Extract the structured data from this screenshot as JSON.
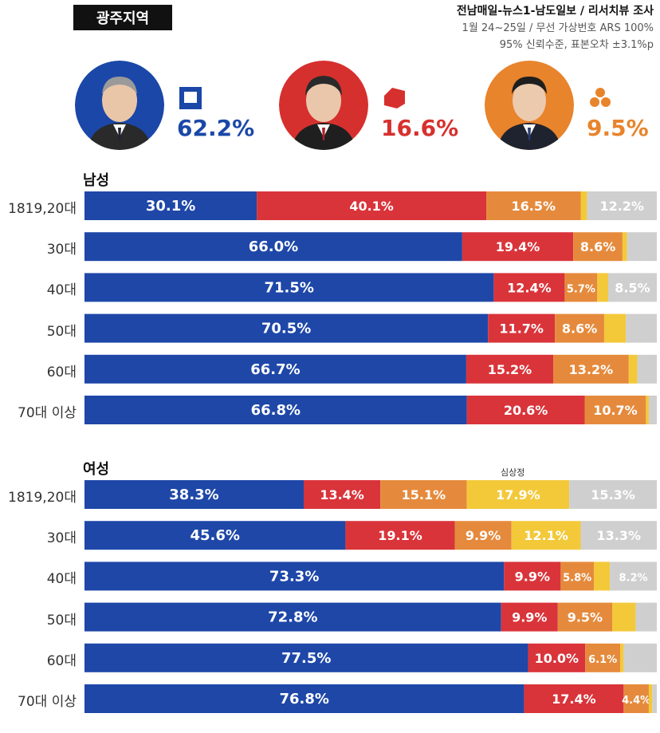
{
  "header": {
    "region": "광주지역",
    "source_main": "전남매일-뉴스1-남도일보 / 리서치뷰 조사",
    "source_line2": "1월 24~25일 / 무선 가상번호 ARS 100%",
    "source_line3": "95% 신뢰수준, 표본오차 ±3.1%p"
  },
  "candidates": [
    {
      "pct": "62.2%",
      "color": "#1a47a8",
      "icon": "democratic-party-square-icon"
    },
    {
      "pct": "16.6%",
      "color": "#d6302e",
      "icon": "people-power-party-flag-icon"
    },
    {
      "pct": "9.5%",
      "color": "#e8842c",
      "icon": "peoples-party-trefoil-icon"
    }
  ],
  "colors": [
    "#1e47a8",
    "#d9343a",
    "#e58a3c",
    "#f3c93a",
    "#cfcfcf"
  ],
  "chart_data": {
    "type": "bar",
    "stacked": "horizontal-100",
    "groups": [
      {
        "label": "남성",
        "note": "",
        "categories": [
          "1819,20대",
          "30대",
          "40대",
          "50대",
          "60대",
          "70대 이상"
        ],
        "values": [
          [
            30.1,
            40.1,
            16.5,
            1.1,
            12.2
          ],
          [
            66.0,
            19.4,
            8.6,
            0.8,
            5.2
          ],
          [
            71.5,
            12.4,
            5.7,
            1.9,
            8.5
          ],
          [
            70.5,
            11.7,
            8.6,
            3.8,
            5.4
          ],
          [
            66.7,
            15.2,
            13.2,
            1.5,
            3.4
          ],
          [
            66.8,
            20.6,
            10.7,
            0.5,
            1.4
          ]
        ],
        "labels": [
          [
            "30.1%",
            "40.1%",
            "16.5%",
            "",
            "12.2%"
          ],
          [
            "66.0%",
            "19.4%",
            "8.6%",
            "",
            ""
          ],
          [
            "71.5%",
            "12.4%",
            "5.7%",
            "",
            "8.5%"
          ],
          [
            "70.5%",
            "11.7%",
            "8.6%",
            "",
            ""
          ],
          [
            "66.7%",
            "15.2%",
            "13.2%",
            "",
            ""
          ],
          [
            "66.8%",
            "20.6%",
            "10.7%",
            "",
            ""
          ]
        ]
      },
      {
        "label": "여성",
        "note": "심상정",
        "categories": [
          "1819,20대",
          "30대",
          "40대",
          "50대",
          "60대",
          "70대 이상"
        ],
        "values": [
          [
            38.3,
            13.4,
            15.1,
            17.9,
            15.3
          ],
          [
            45.6,
            19.1,
            9.9,
            12.1,
            13.3
          ],
          [
            73.3,
            9.9,
            5.8,
            2.8,
            8.2
          ],
          [
            72.8,
            9.9,
            9.5,
            4.1,
            3.7
          ],
          [
            77.5,
            10.0,
            6.1,
            0.6,
            5.8
          ],
          [
            76.8,
            17.4,
            4.4,
            0.6,
            0.8
          ]
        ],
        "labels": [
          [
            "38.3%",
            "13.4%",
            "15.1%",
            "17.9%",
            "15.3%"
          ],
          [
            "45.6%",
            "19.1%",
            "9.9%",
            "12.1%",
            "13.3%"
          ],
          [
            "73.3%",
            "9.9%",
            "5.8%",
            "",
            "8.2%"
          ],
          [
            "72.8%",
            "9.9%",
            "9.5%",
            "",
            ""
          ],
          [
            "77.5%",
            "10.0%",
            "6.1%",
            "",
            ""
          ],
          [
            "76.8%",
            "17.4%",
            "4.4%",
            "",
            ""
          ]
        ]
      }
    ]
  }
}
